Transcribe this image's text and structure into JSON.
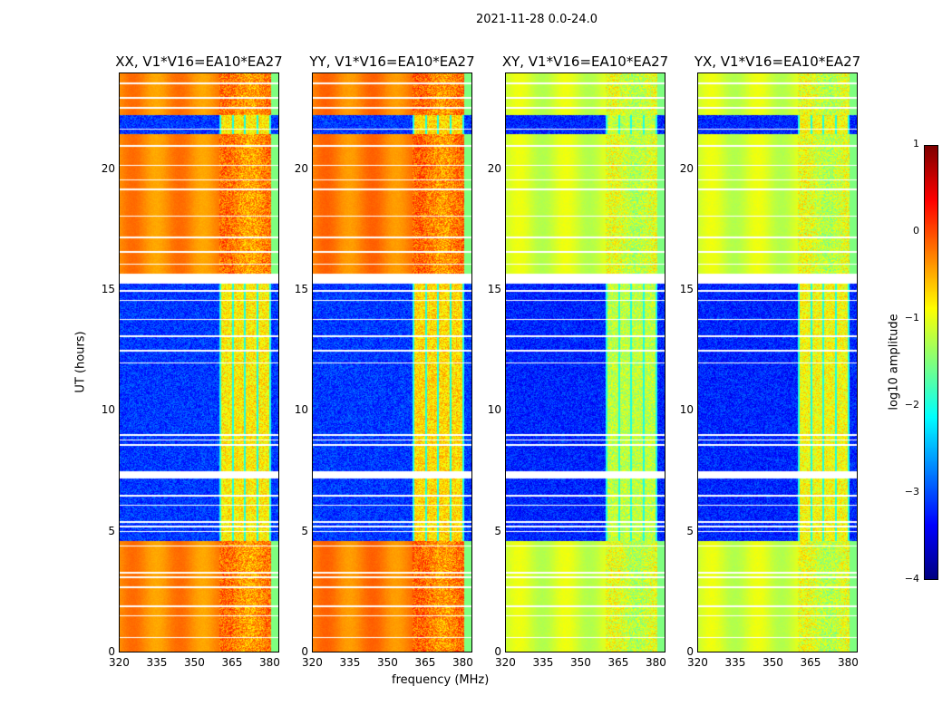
{
  "chart_data": {
    "type": "heatmap",
    "title": "2021-11-28 0.0-24.0",
    "xlabel": "frequency (MHz)",
    "ylabel": "UT (hours)",
    "xlim": [
      320,
      384
    ],
    "ylim": [
      0,
      24
    ],
    "xticks": [
      "320",
      "335",
      "350",
      "365",
      "380"
    ],
    "yticks": [
      "0",
      "5",
      "10",
      "15",
      "20"
    ],
    "colorbar": {
      "label": "log10 amplitude",
      "range": [
        -4,
        1
      ],
      "ticks": [
        "1",
        "0",
        "−1",
        "−2",
        "−3",
        "−4"
      ],
      "colormap": "jet"
    },
    "rfi_band_mhz": [
      360,
      381
    ],
    "time_segments": [
      {
        "start": 0,
        "end": 4.6,
        "state": "bright"
      },
      {
        "start": 4.6,
        "end": 7.2,
        "state": "dim"
      },
      {
        "start": 7.2,
        "end": 7.5,
        "state": "flagged"
      },
      {
        "start": 7.5,
        "end": 15.3,
        "state": "dim"
      },
      {
        "start": 15.3,
        "end": 15.7,
        "state": "flagged"
      },
      {
        "start": 15.7,
        "end": 21.5,
        "state": "bright"
      },
      {
        "start": 21.5,
        "end": 22.3,
        "state": "dim"
      },
      {
        "start": 22.3,
        "end": 24,
        "state": "bright"
      }
    ],
    "panels": [
      {
        "title": "XX, V1*V16=EA10*EA27",
        "bright_level": -0.3,
        "dim_level": -3.1,
        "band_level": -0.8
      },
      {
        "title": "YY, V1*V16=EA10*EA27",
        "bright_level": -0.25,
        "dim_level": -3.1,
        "band_level": -0.7
      },
      {
        "title": "XY, V1*V16=EA10*EA27",
        "bright_level": -1.1,
        "dim_level": -3.2,
        "band_level": -1.2
      },
      {
        "title": "YX, V1*V16=EA10*EA27",
        "bright_level": -1.1,
        "dim_level": -3.2,
        "band_level": -0.9
      }
    ]
  }
}
